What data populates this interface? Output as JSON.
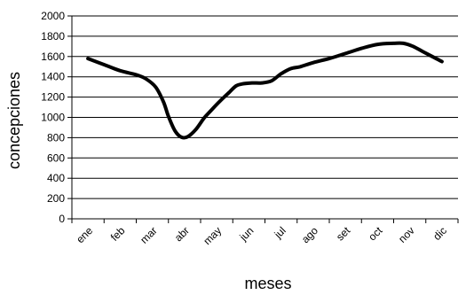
{
  "chart_data": {
    "type": "line",
    "title": "",
    "xlabel": "meses",
    "ylabel": "concepciones",
    "categories": [
      "ene",
      "feb",
      "mar",
      "abr",
      "may",
      "jun",
      "jul",
      "ago",
      "set",
      "oct",
      "nov",
      "dic"
    ],
    "ylim": [
      0,
      2000
    ],
    "yticks": [
      0,
      200,
      400,
      600,
      800,
      1000,
      1200,
      1400,
      1600,
      1800,
      2000
    ],
    "grid": "horizontal",
    "legend": "none",
    "series": [
      {
        "color": "#000000",
        "x": [
          0.5,
          1.0,
          1.5,
          2.0,
          2.3,
          2.6,
          2.85,
          3.0,
          3.2,
          3.4,
          3.6,
          3.85,
          4.1,
          4.3,
          4.6,
          4.9,
          5.1,
          5.3,
          5.6,
          5.9,
          6.2,
          6.5,
          6.8,
          7.1,
          7.5,
          8.0,
          8.5,
          9.0,
          9.5,
          10.0,
          10.3,
          10.6,
          10.9,
          11.2,
          11.5
        ],
        "values": [
          1580,
          1520,
          1460,
          1420,
          1380,
          1300,
          1150,
          1010,
          870,
          805,
          810,
          880,
          990,
          1060,
          1160,
          1250,
          1310,
          1330,
          1340,
          1340,
          1360,
          1430,
          1480,
          1500,
          1540,
          1580,
          1630,
          1680,
          1720,
          1730,
          1730,
          1700,
          1650,
          1600,
          1550
        ]
      }
    ]
  }
}
